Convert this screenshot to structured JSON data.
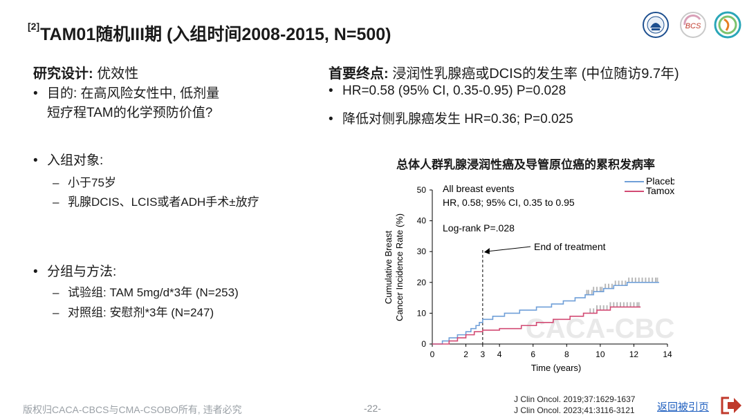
{
  "header": {
    "sup": "[2]",
    "title": "TAM01随机III期 (入组时间2008-2015, N=500)"
  },
  "logos": [
    "seal-logo",
    "bcs-logo",
    "ribbon-logo"
  ],
  "logo_text": {
    "bcs": "BCS"
  },
  "left": {
    "design_label": "研究设计:",
    "design_value": " 优效性",
    "purpose_line1": "目的: 在高风险女性中, 低剂量",
    "purpose_line2": "短疗程TAM的化学预防价值?",
    "population_label": "入组对象:",
    "population_items": [
      "小于75岁",
      "乳腺DCIS、LCIS或者ADH手术±放疗"
    ],
    "groups_label": "分组与方法:",
    "group_items": [
      "试验组: TAM 5mg/d*3年 (N=253)",
      "对照组: 安慰剂*3年 (N=247)"
    ]
  },
  "right": {
    "endpoint_label": "首要终点:",
    "endpoint_value": " 浸润性乳腺癌或DCIS的发生率 (中位随访9.7年)",
    "results": [
      "HR=0.58 (95% CI, 0.35-0.95) P=0.028",
      "降低对侧乳腺癌发生 HR=0.36; P=0.025"
    ]
  },
  "chart_data": {
    "type": "line",
    "title": "总体人群乳腺浸润性癌及导管原位癌的累积发病率",
    "xlabel": "Time (years)",
    "ylabel_line1": "Cumulative Breast",
    "ylabel_line2": "Cancer Incidence Rate (%)",
    "xlim": [
      0,
      14
    ],
    "ylim": [
      0,
      50
    ],
    "xticks": [
      0,
      2,
      3,
      4,
      6,
      8,
      10,
      12,
      14
    ],
    "yticks": [
      0,
      10,
      20,
      30,
      40,
      50
    ],
    "annotations": {
      "line1": "All breast events",
      "line2": "HR, 0.58; 95% CI, 0.35 to 0.95",
      "line3": "Log-rank P=.028",
      "arrow_label": "End of treatment",
      "end_of_treatment_x": 3
    },
    "watermark": "CACA-CBCS",
    "legend_position": "top-right",
    "series": [
      {
        "name": "Placebo",
        "color": "#6f9fd8",
        "points": [
          [
            0,
            0
          ],
          [
            0.6,
            1
          ],
          [
            1,
            2
          ],
          [
            1.5,
            3
          ],
          [
            2,
            4
          ],
          [
            2.3,
            5
          ],
          [
            2.6,
            6
          ],
          [
            2.8,
            7
          ],
          [
            3,
            8
          ],
          [
            3.6,
            9
          ],
          [
            4.3,
            10
          ],
          [
            5.2,
            11
          ],
          [
            6.2,
            12
          ],
          [
            7.1,
            13
          ],
          [
            7.8,
            14
          ],
          [
            8.5,
            15
          ],
          [
            9.1,
            16
          ],
          [
            9.6,
            17
          ],
          [
            10.2,
            18
          ],
          [
            10.8,
            19
          ],
          [
            11.6,
            20
          ],
          [
            13.5,
            20
          ]
        ],
        "censor_x": [
          9.2,
          9.3,
          9.5,
          9.6,
          9.8,
          10,
          10.1,
          10.3,
          10.5,
          10.7,
          10.9,
          11.1,
          11.3,
          11.5,
          11.7,
          11.9,
          12.1,
          12.3,
          12.5,
          12.7,
          12.9,
          13.1,
          13.3,
          13.4
        ]
      },
      {
        "name": "Tamoxifen",
        "color": "#d24a73",
        "points": [
          [
            0,
            0
          ],
          [
            1,
            1
          ],
          [
            1.5,
            2
          ],
          [
            2,
            3
          ],
          [
            2.5,
            4
          ],
          [
            3,
            4.5
          ],
          [
            4,
            5
          ],
          [
            5.3,
            6
          ],
          [
            6.2,
            7
          ],
          [
            7.2,
            8
          ],
          [
            8.2,
            9
          ],
          [
            9,
            10
          ],
          [
            9.8,
            11
          ],
          [
            10.6,
            12
          ],
          [
            12.4,
            12
          ]
        ],
        "censor_x": [
          9.4,
          9.6,
          9.8,
          10,
          10.2,
          10.4,
          10.6,
          10.8,
          11,
          11.2,
          11.4,
          11.6,
          11.8,
          12,
          12.2,
          12.3
        ]
      }
    ]
  },
  "footer": {
    "copyright": "版权归CACA-CBCS与CMA-CSOBO所有, 违者必究",
    "page": "-22-",
    "ref1": "J Clin Oncol. 2019;37:1629-1637",
    "ref2": "J Clin Oncol. 2023;41:3116-3121",
    "back": "返回被引页"
  }
}
